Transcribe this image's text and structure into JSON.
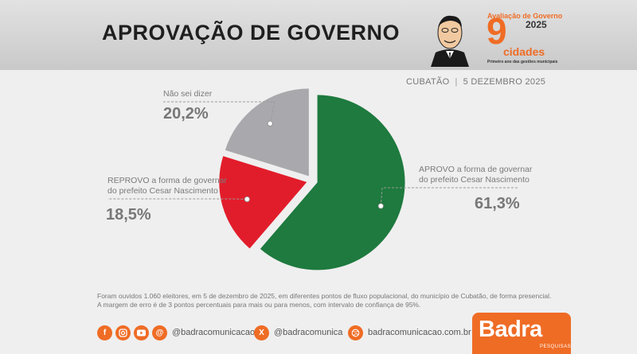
{
  "header": {
    "title": "APROVAÇÃO DE GOVERNO",
    "brand": {
      "label": "Avaliação de Governo",
      "year": "2025",
      "nine": "9",
      "cidades": "cidades",
      "tagline": "Primeiro ano das gestões municipais"
    }
  },
  "location": {
    "city": "CUBATÃO",
    "separator": "|",
    "date": "5 DEZEMBRO 2025"
  },
  "chart_data": {
    "type": "pie",
    "title": "APROVAÇÃO DE GOVERNO",
    "slices": [
      {
        "label": "APROVO a forma de governar do prefeito Cesar Nascimento",
        "value": 61.3,
        "display": "61,3%",
        "color": "#1e7a3e"
      },
      {
        "label": "REPROVO a forma de governar do prefeito Cesar Nascimento",
        "value": 18.5,
        "display": "18,5%",
        "color": "#e21d2b"
      },
      {
        "label": "Não sei dizer",
        "value": 20.2,
        "display": "20,2%",
        "color": "#a9a9ad"
      }
    ],
    "label_lines": {
      "aprovo": [
        "APROVO a forma de governar",
        "do prefeito Cesar Nascimento"
      ],
      "reprovo": [
        "REPROVO a forma de governar",
        "do prefeito Cesar Nascimento"
      ],
      "naosei": [
        "Não sei dizer"
      ]
    }
  },
  "footnote": {
    "line1": "Foram ouvidos 1.060 eleitores, em 5 de dezembro de 2025, em diferentes pontos de fluxo populacional, do município de Cubatão, de forma presencial.",
    "line2": "A margem de erro é de 3 pontos percentuais para mais ou para menos, com intervalo de confiança de 95%."
  },
  "footer": {
    "instagram_handle": "@badracomunicacao",
    "x_handle": "@badracomunica",
    "website": "badracomunicacao.com.br",
    "logo": "Badra",
    "logo_sub": "PESQUISAS"
  },
  "icons": [
    "facebook-icon",
    "instagram-icon",
    "youtube-icon",
    "threads-icon",
    "x-icon",
    "dribbble-icon"
  ]
}
